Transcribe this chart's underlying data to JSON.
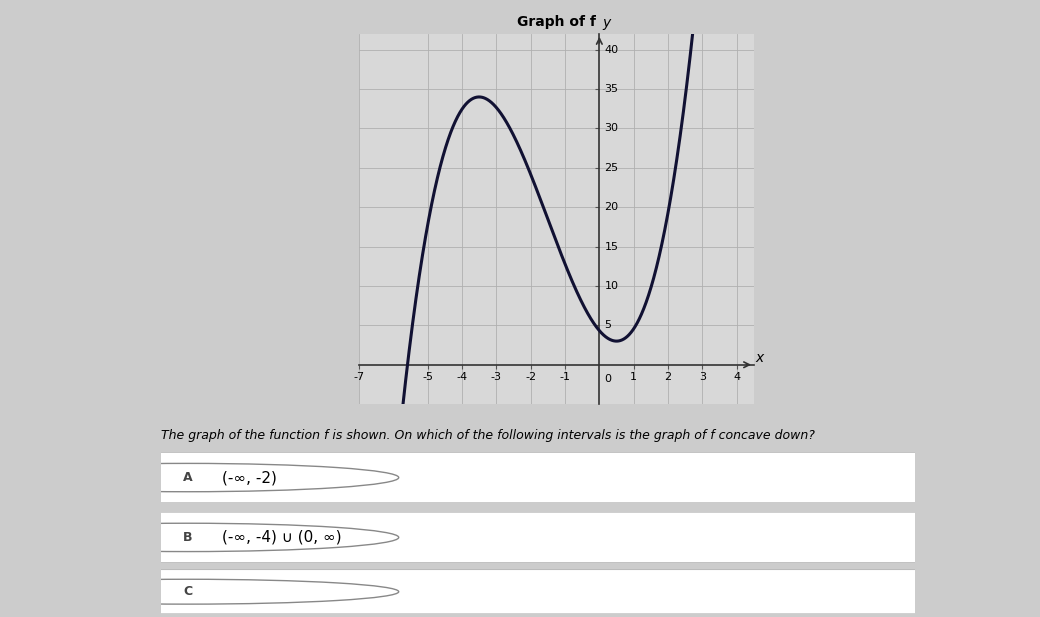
{
  "bg_color": "#cccccc",
  "graph_bg": "#d8d8d8",
  "graph_grid_color": "#b0b0b0",
  "curve_color": "#111133",
  "curve_linewidth": 2.2,
  "x_min": -7,
  "x_max": 4.5,
  "y_min": -5,
  "y_max": 42,
  "x_ticks": [
    -7,
    -5,
    -4,
    -3,
    -2,
    -1,
    1,
    2,
    3,
    4
  ],
  "y_ticks": [
    5,
    10,
    15,
    20,
    25,
    30,
    35,
    40
  ],
  "graph_title": "Graph of f",
  "question_text": "The graph of the function f is shown. On which of the following intervals is the graph of f concave down?",
  "option_A_label": "A",
  "option_A_text": "(-∞, -2)",
  "option_B_label": "B",
  "option_B_text": "(-∞, -4) ∪ (0, ∞)",
  "option_C_label": "C",
  "option_C_text": ""
}
